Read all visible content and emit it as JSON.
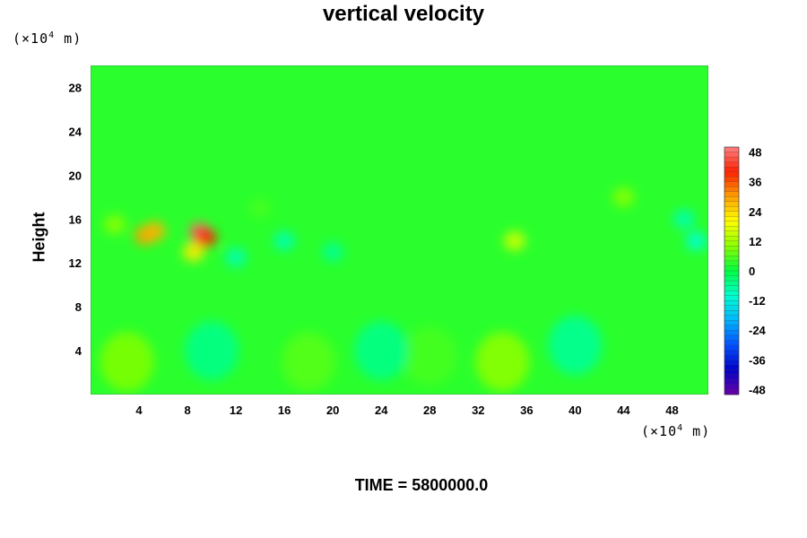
{
  "chart_data": {
    "type": "heatmap",
    "title": "vertical velocity",
    "ylabel": "Height",
    "xlabel": "",
    "x_unit_prefix": "(×10",
    "x_unit_exp": "4",
    "x_unit_suffix": " m)",
    "y_unit_prefix": "(×10",
    "y_unit_exp": "4",
    "y_unit_suffix": " m)",
    "footer": "TIME = 5800000.0",
    "xlim": [
      0,
      51
    ],
    "ylim": [
      0,
      30
    ],
    "x_ticks": [
      4,
      8,
      12,
      16,
      20,
      24,
      28,
      32,
      36,
      40,
      44,
      48
    ],
    "y_ticks": [
      4,
      8,
      12,
      16,
      20,
      24,
      28
    ],
    "colorbar": {
      "range": [
        -50,
        50
      ],
      "ticks": [
        48,
        36,
        24,
        12,
        0,
        -12,
        -24,
        -36,
        -48
      ],
      "colors_low_to_high": [
        "#6a00a8",
        "#0000c8",
        "#0050ff",
        "#00b4ff",
        "#00ffd0",
        "#00ff40",
        "#8cff00",
        "#ffff00",
        "#ffa000",
        "#ff2000",
        "#ff8080"
      ]
    },
    "background_value": 3,
    "features": [
      {
        "x": 9,
        "y": 14.8,
        "value": 48
      },
      {
        "x": 9.5,
        "y": 14.3,
        "value": 40
      },
      {
        "x": 4.5,
        "y": 14.5,
        "value": 30
      },
      {
        "x": 5.3,
        "y": 14.9,
        "value": 28
      },
      {
        "x": 8.5,
        "y": 13,
        "value": 22
      },
      {
        "x": 35,
        "y": 14,
        "value": 16
      },
      {
        "x": 2,
        "y": 15.5,
        "value": 10
      },
      {
        "x": 12,
        "y": 12.5,
        "value": -8
      },
      {
        "x": 16,
        "y": 14,
        "value": -8
      },
      {
        "x": 50,
        "y": 14,
        "value": -10
      },
      {
        "x": 49,
        "y": 16,
        "value": -8
      },
      {
        "x": 20,
        "y": 13,
        "value": -6
      },
      {
        "x": 34,
        "y": 3,
        "value": 10
      },
      {
        "x": 3,
        "y": 3,
        "value": 9
      },
      {
        "x": 18,
        "y": 3,
        "value": 6
      },
      {
        "x": 28,
        "y": 3.5,
        "value": 5
      },
      {
        "x": 40,
        "y": 4.5,
        "value": -6
      },
      {
        "x": 24,
        "y": 4,
        "value": -5
      },
      {
        "x": 10,
        "y": 4,
        "value": -5
      },
      {
        "x": 44,
        "y": 18,
        "value": 10
      },
      {
        "x": 14,
        "y": 17,
        "value": 5
      }
    ]
  }
}
